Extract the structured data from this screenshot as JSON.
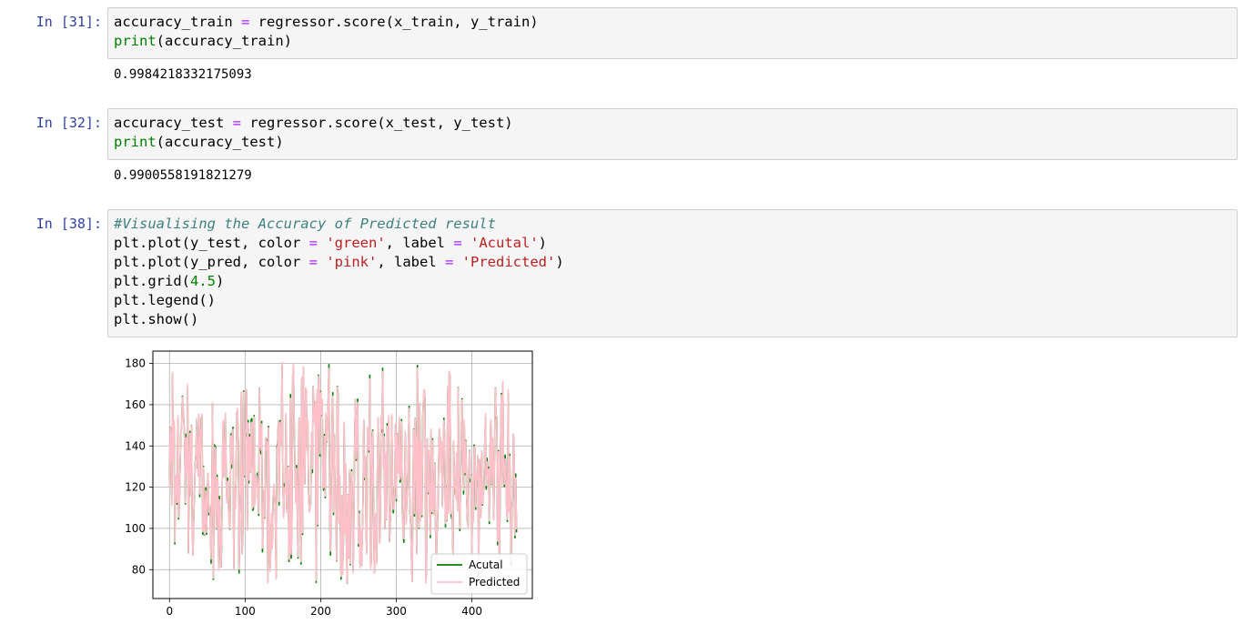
{
  "cells": [
    {
      "prompt": "In [31]:",
      "code_lines": [
        [
          {
            "t": "accuracy_train "
          },
          {
            "t": "=",
            "c": "op"
          },
          {
            "t": " regressor.score(x_train, y_train)"
          }
        ],
        [
          {
            "t": "print",
            "c": "kw"
          },
          {
            "t": "(accuracy_train)"
          }
        ]
      ],
      "output": "0.9984218332175093"
    },
    {
      "prompt": "In [32]:",
      "code_lines": [
        [
          {
            "t": "accuracy_test "
          },
          {
            "t": "=",
            "c": "op"
          },
          {
            "t": " regressor.score(x_test, y_test)"
          }
        ],
        [
          {
            "t": "print",
            "c": "kw"
          },
          {
            "t": "(accuracy_test)"
          }
        ]
      ],
      "output": "0.9900558191821279"
    },
    {
      "prompt": "In [38]:",
      "code_lines": [
        [
          {
            "t": "#Visualising the Accuracy of Predicted result",
            "c": "cm"
          }
        ],
        [
          {
            "t": "plt.plot(y_test, color "
          },
          {
            "t": "=",
            "c": "op"
          },
          {
            "t": " "
          },
          {
            "t": "'green'",
            "c": "str"
          },
          {
            "t": ", label "
          },
          {
            "t": "=",
            "c": "op"
          },
          {
            "t": " "
          },
          {
            "t": "'Acutal'",
            "c": "str"
          },
          {
            "t": ")"
          }
        ],
        [
          {
            "t": "plt.plot(y_pred, color "
          },
          {
            "t": "=",
            "c": "op"
          },
          {
            "t": " "
          },
          {
            "t": "'pink'",
            "c": "str"
          },
          {
            "t": ", label "
          },
          {
            "t": "=",
            "c": "op"
          },
          {
            "t": " "
          },
          {
            "t": "'Predicted'",
            "c": "str"
          },
          {
            "t": ")"
          }
        ],
        [
          {
            "t": "plt.grid("
          },
          {
            "t": "4.5",
            "c": "num"
          },
          {
            "t": ")"
          }
        ],
        [
          {
            "t": "plt.legend()"
          }
        ],
        [
          {
            "t": "plt.show()"
          }
        ]
      ],
      "output": ""
    }
  ],
  "chart_data": {
    "type": "line",
    "xlim": [
      -22,
      480
    ],
    "ylim": [
      66,
      186
    ],
    "xticks": [
      0,
      100,
      200,
      300,
      400
    ],
    "yticks": [
      80,
      100,
      120,
      140,
      160,
      180
    ],
    "grid": true,
    "legend_position": "lower-right",
    "series": [
      {
        "name": "Acutal",
        "color": "#008000"
      },
      {
        "name": "Predicted",
        "color": "#ffc0cb"
      }
    ],
    "n_points": 460,
    "generator_seed": 38
  }
}
